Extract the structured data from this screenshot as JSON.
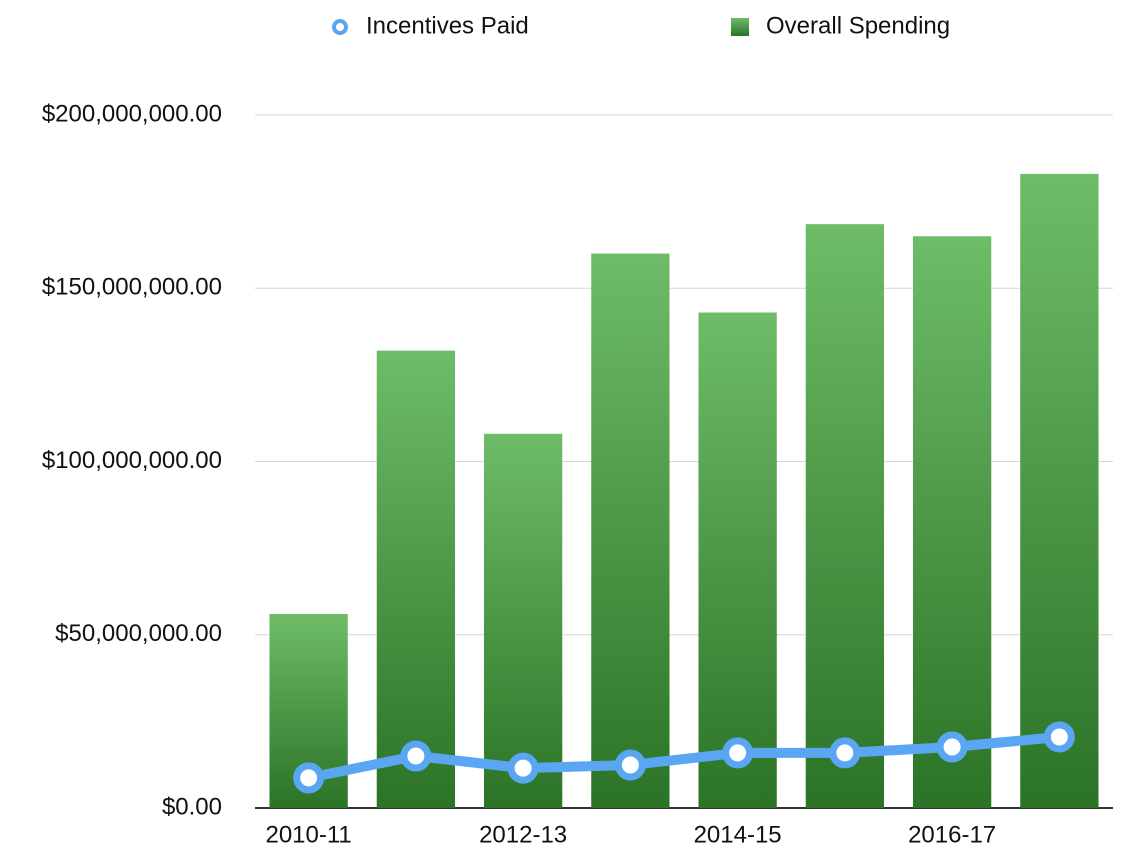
{
  "chart_data": {
    "type": "bar",
    "categories": [
      "2010-11",
      null,
      "2012-13",
      null,
      "2014-15",
      null,
      "2016-17",
      null
    ],
    "series": [
      {
        "name": "Incentives Paid",
        "type": "line",
        "color": "#5aa6f2",
        "values": [
          8700000,
          15000000,
          11500000,
          12400000,
          15900000,
          15900000,
          17600000,
          20500000
        ]
      },
      {
        "name": "Overall Spending",
        "type": "bar",
        "color": "#3ea536",
        "values": [
          56000000,
          132000000,
          108000000,
          160000000,
          143000000,
          168500000,
          165000000,
          183000000
        ]
      }
    ],
    "ylim": [
      0,
      200000000
    ],
    "yticks": [
      {
        "value": 0,
        "label": "$0.00"
      },
      {
        "value": 50000000,
        "label": "$50,000,000.00"
      },
      {
        "value": 100000000,
        "label": "$100,000,000.00"
      },
      {
        "value": 150000000,
        "label": "$150,000,000.00"
      },
      {
        "value": 200000000,
        "label": "$200,000,000.00"
      }
    ],
    "grid": true
  }
}
